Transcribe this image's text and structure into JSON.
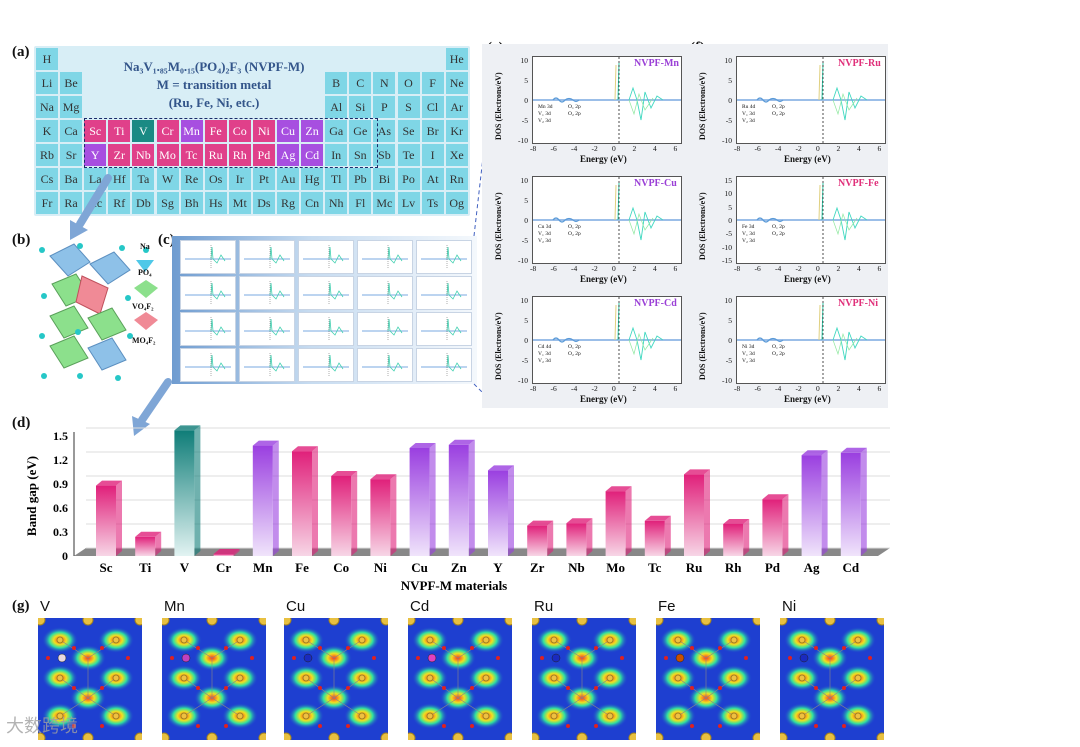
{
  "panel_labels": {
    "a": "(a)",
    "b": "(b)",
    "c": "(c)",
    "d": "(d)",
    "e": "(e)",
    "f": "(f)",
    "g": "(g)"
  },
  "periodic_table": {
    "formula_main": "Na",
    "formula_line": "Na₃V₁.₈₅M₀.₁₅(PO₄)₂F₃ (NVPF-M)",
    "line2": "M = transition metal",
    "line3": "(Ru, Fe, Ni, etc.)",
    "rows": [
      [
        "H",
        "",
        "",
        "",
        "",
        "",
        "",
        "",
        "",
        "",
        "",
        "",
        "",
        "",
        "",
        "",
        "",
        "He"
      ],
      [
        "Li",
        "Be",
        "",
        "",
        "",
        "",
        "",
        "",
        "",
        "",
        "",
        "",
        "B",
        "C",
        "N",
        "O",
        "F",
        "Ne"
      ],
      [
        "Na",
        "Mg",
        "",
        "",
        "",
        "",
        "",
        "",
        "",
        "",
        "",
        "",
        "Al",
        "Si",
        "P",
        "S",
        "Cl",
        "Ar"
      ],
      [
        "K",
        "Ca",
        "Sc",
        "Ti",
        "V",
        "Cr",
        "Mn",
        "Fe",
        "Co",
        "Ni",
        "Cu",
        "Zn",
        "Ga",
        "Ge",
        "As",
        "Se",
        "Br",
        "Kr"
      ],
      [
        "Rb",
        "Sr",
        "Y",
        "Zr",
        "Nb",
        "Mo",
        "Tc",
        "Ru",
        "Rh",
        "Pd",
        "Ag",
        "Cd",
        "In",
        "Sn",
        "Sb",
        "Te",
        "I",
        "Xe"
      ],
      [
        "Cs",
        "Ba",
        "La",
        "Hf",
        "Ta",
        "W",
        "Re",
        "Os",
        "Ir",
        "Pt",
        "Au",
        "Hg",
        "Tl",
        "Pb",
        "Bi",
        "Po",
        "At",
        "Rn"
      ],
      [
        "Fr",
        "Ra",
        "Ac",
        "Rf",
        "Db",
        "Sg",
        "Bh",
        "Hs",
        "Mt",
        "Ds",
        "Rg",
        "Cn",
        "Nh",
        "Fl",
        "Mc",
        "Lv",
        "Ts",
        "Og"
      ]
    ]
  },
  "structure_legend": [
    "Na",
    "PO₄",
    "VO₄F₂",
    "MO₄F₂"
  ],
  "dos_panels": [
    {
      "title": "NVPF-Mn",
      "color": "#9a3fd6",
      "legend": [
        "Mn 3d",
        "V₁ 3d",
        "V₂ 3d",
        "O₁ 2p",
        "O₂ 2p"
      ]
    },
    {
      "title": "NVPF-Ru",
      "color": "#e0307a",
      "legend": [
        "Ru 4d",
        "V₁ 3d",
        "V₂ 3d",
        "O₁ 2p",
        "O₂ 2p"
      ]
    },
    {
      "title": "NVPF-Cu",
      "color": "#9a3fd6",
      "legend": [
        "Cu 3d",
        "V₁ 3d",
        "V₂ 3d",
        "O₁ 2p",
        "O₂ 2p"
      ]
    },
    {
      "title": "NVPF-Fe",
      "color": "#e0307a",
      "legend": [
        "Fe 3d",
        "V₁ 3d",
        "V₂ 3d",
        "O₁ 2p",
        "O₂ 2p"
      ]
    },
    {
      "title": "NVPF-Cd",
      "color": "#9a3fd6",
      "legend": [
        "Cd 4d",
        "V₁ 3d",
        "V₂ 3d",
        "O₁ 2p",
        "O₂ 2p"
      ]
    },
    {
      "title": "NVPF-Ni",
      "color": "#e0307a",
      "legend": [
        "Ni 3d",
        "V₁ 3d",
        "V₂ 3d",
        "O₁ 2p",
        "O₂ 2p"
      ]
    }
  ],
  "dos_axis": {
    "ylabel": "DOS (Electrons/eV)",
    "xlabel": "Energy (eV)",
    "xticks": [
      "-8",
      "-6",
      "-4",
      "-2",
      "0",
      "2",
      "4",
      "6"
    ]
  },
  "chart_data": {
    "type": "bar",
    "title": "",
    "xlabel": "NVPF-M materials",
    "ylabel": "Band gap (eV)",
    "ylim": [
      0,
      1.5
    ],
    "yticks": [
      "0",
      "0.3",
      "0.6",
      "0.9",
      "1.2",
      "1.5"
    ],
    "categories": [
      "Sc",
      "Ti",
      "V",
      "Cr",
      "Mn",
      "Fe",
      "Co",
      "Ni",
      "Cu",
      "Zn",
      "Y",
      "Zr",
      "Nb",
      "Mo",
      "Tc",
      "Ru",
      "Rh",
      "Pd",
      "Ag",
      "Cd"
    ],
    "values": [
      0.88,
      0.24,
      1.57,
      0.02,
      1.38,
      1.31,
      1.0,
      0.96,
      1.35,
      1.39,
      1.07,
      0.38,
      0.41,
      0.81,
      0.44,
      1.02,
      0.4,
      0.71,
      1.26,
      1.29
    ],
    "colors": [
      "pink",
      "pink",
      "teal",
      "pink",
      "purple",
      "pink",
      "pink",
      "pink",
      "purple",
      "purple",
      "purple",
      "pink",
      "pink",
      "pink",
      "pink",
      "pink",
      "pink",
      "pink",
      "purple",
      "purple"
    ]
  },
  "elf_labels": [
    "V",
    "Mn",
    "Cu",
    "Cd",
    "Ru",
    "Fe",
    "Ni"
  ],
  "watermark": "大数跨境"
}
